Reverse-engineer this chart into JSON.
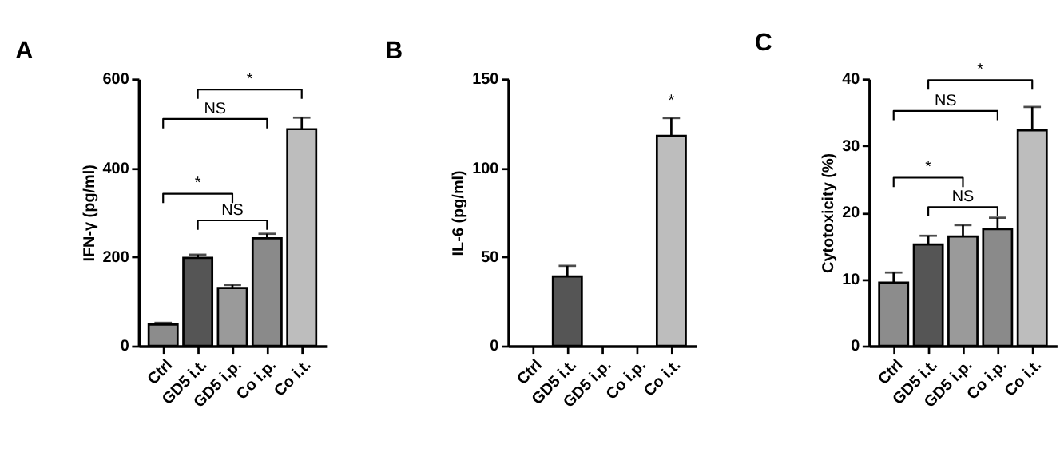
{
  "chart_data": [
    {
      "type": "bar",
      "title": "A",
      "ylabel": "IFN-γ (pg/ml)",
      "categories": [
        "Ctrl",
        "GD5 i.t.",
        "GD5 i.p.",
        "Co i.p.",
        "Co i.t."
      ],
      "values": [
        48,
        198,
        130,
        242,
        487
      ],
      "errors": [
        [
          48,
          52
        ],
        [
          198,
          205
        ],
        [
          130,
          137
        ],
        [
          242,
          252
        ],
        [
          487,
          513
        ]
      ],
      "colors": [
        "#8c8c8c",
        "#555555",
        "#9a9a9a",
        "#8a8a8a",
        "#bdbdbd"
      ],
      "ylim": [
        0,
        600
      ],
      "yticks": [
        0,
        200,
        400,
        600
      ],
      "grid": false,
      "legend": false,
      "annotations": [
        "*",
        "NS",
        "*",
        "NS"
      ]
    },
    {
      "type": "bar",
      "title": "B",
      "ylabel": "IL-6 (pg/ml)",
      "categories": [
        "Ctrl",
        "GD5 i.t.",
        "GD5 i.p.",
        "Co i.p.",
        "Co i.t."
      ],
      "values": [
        null,
        39,
        null,
        null,
        118
      ],
      "errors": [
        null,
        [
          39,
          45
        ],
        null,
        null,
        [
          118,
          128
        ]
      ],
      "colors": [
        "#8c8c8c",
        "#555555",
        "#9a9a9a",
        "#8a8a8a",
        "#bdbdbd"
      ],
      "ylim": [
        0,
        150
      ],
      "yticks": [
        0,
        50,
        100,
        150
      ],
      "grid": false,
      "legend": false,
      "annotations": [
        "*"
      ]
    },
    {
      "type": "bar",
      "title": "C",
      "ylabel": "Cytotoxicity (%)",
      "categories": [
        "Ctrl",
        "GD5 i.t.",
        "GD5 i.p.",
        "Co i.p.",
        "Co i.t."
      ],
      "values": [
        9.5,
        15.2,
        16.4,
        17.5,
        32.3
      ],
      "errors": [
        [
          9.5,
          11.0
        ],
        [
          15.2,
          16.5
        ],
        [
          16.4,
          18.1
        ],
        [
          17.5,
          19.2
        ],
        [
          32.3,
          35.8
        ]
      ],
      "colors": [
        "#8c8c8c",
        "#555555",
        "#9a9a9a",
        "#8a8a8a",
        "#bdbdbd"
      ],
      "ylim": [
        0,
        40
      ],
      "yticks": [
        0,
        10,
        20,
        30,
        40
      ],
      "grid": false,
      "legend": false,
      "annotations": [
        "*",
        "NS",
        "*",
        "NS"
      ]
    }
  ]
}
